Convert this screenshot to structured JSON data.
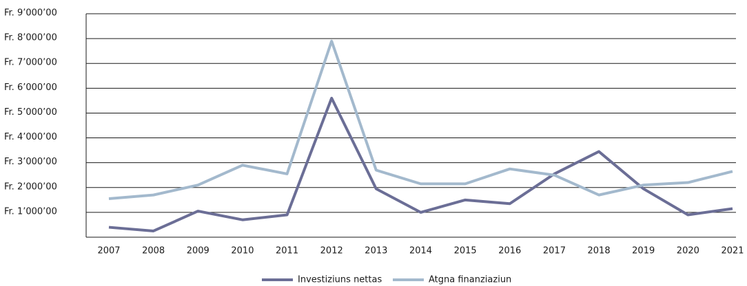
{
  "chart_data": {
    "type": "line",
    "categories": [
      "2007",
      "2008",
      "2009",
      "2010",
      "2011",
      "2012",
      "2013",
      "2014",
      "2015",
      "2016",
      "2017",
      "2018",
      "2019",
      "2020",
      "2021"
    ],
    "series": [
      {
        "name": "Investiziuns nettas",
        "color": "#6b6e96",
        "values": [
          400,
          250,
          1050,
          700,
          900,
          5600,
          1950,
          1000,
          1500,
          1350,
          2550,
          3450,
          1950,
          900,
          1150
        ]
      },
      {
        "name": "Atgna finanziaziun",
        "color": "#a3b9cd",
        "values": [
          1550,
          1700,
          2100,
          2900,
          2550,
          7900,
          2700,
          2150,
          2150,
          2750,
          2500,
          1700,
          2100,
          2200,
          2650
        ]
      }
    ],
    "ylim": [
      0,
      9000
    ],
    "yticks": [
      {
        "value": 1000,
        "label": "Fr. 1’000’00"
      },
      {
        "value": 2000,
        "label": "Fr. 2’000’00"
      },
      {
        "value": 3000,
        "label": "Fr. 3’000’00"
      },
      {
        "value": 4000,
        "label": "Fr. 4’000’00"
      },
      {
        "value": 5000,
        "label": "Fr. 5’000’00"
      },
      {
        "value": 6000,
        "label": "Fr. 6’000’00"
      },
      {
        "value": 7000,
        "label": "Fr. 7’000’00"
      },
      {
        "value": 8000,
        "label": "Fr. 8’000’00"
      },
      {
        "value": 9000,
        "label": "Fr. 9’000’00"
      }
    ],
    "grid": true,
    "legend": "bottom"
  }
}
